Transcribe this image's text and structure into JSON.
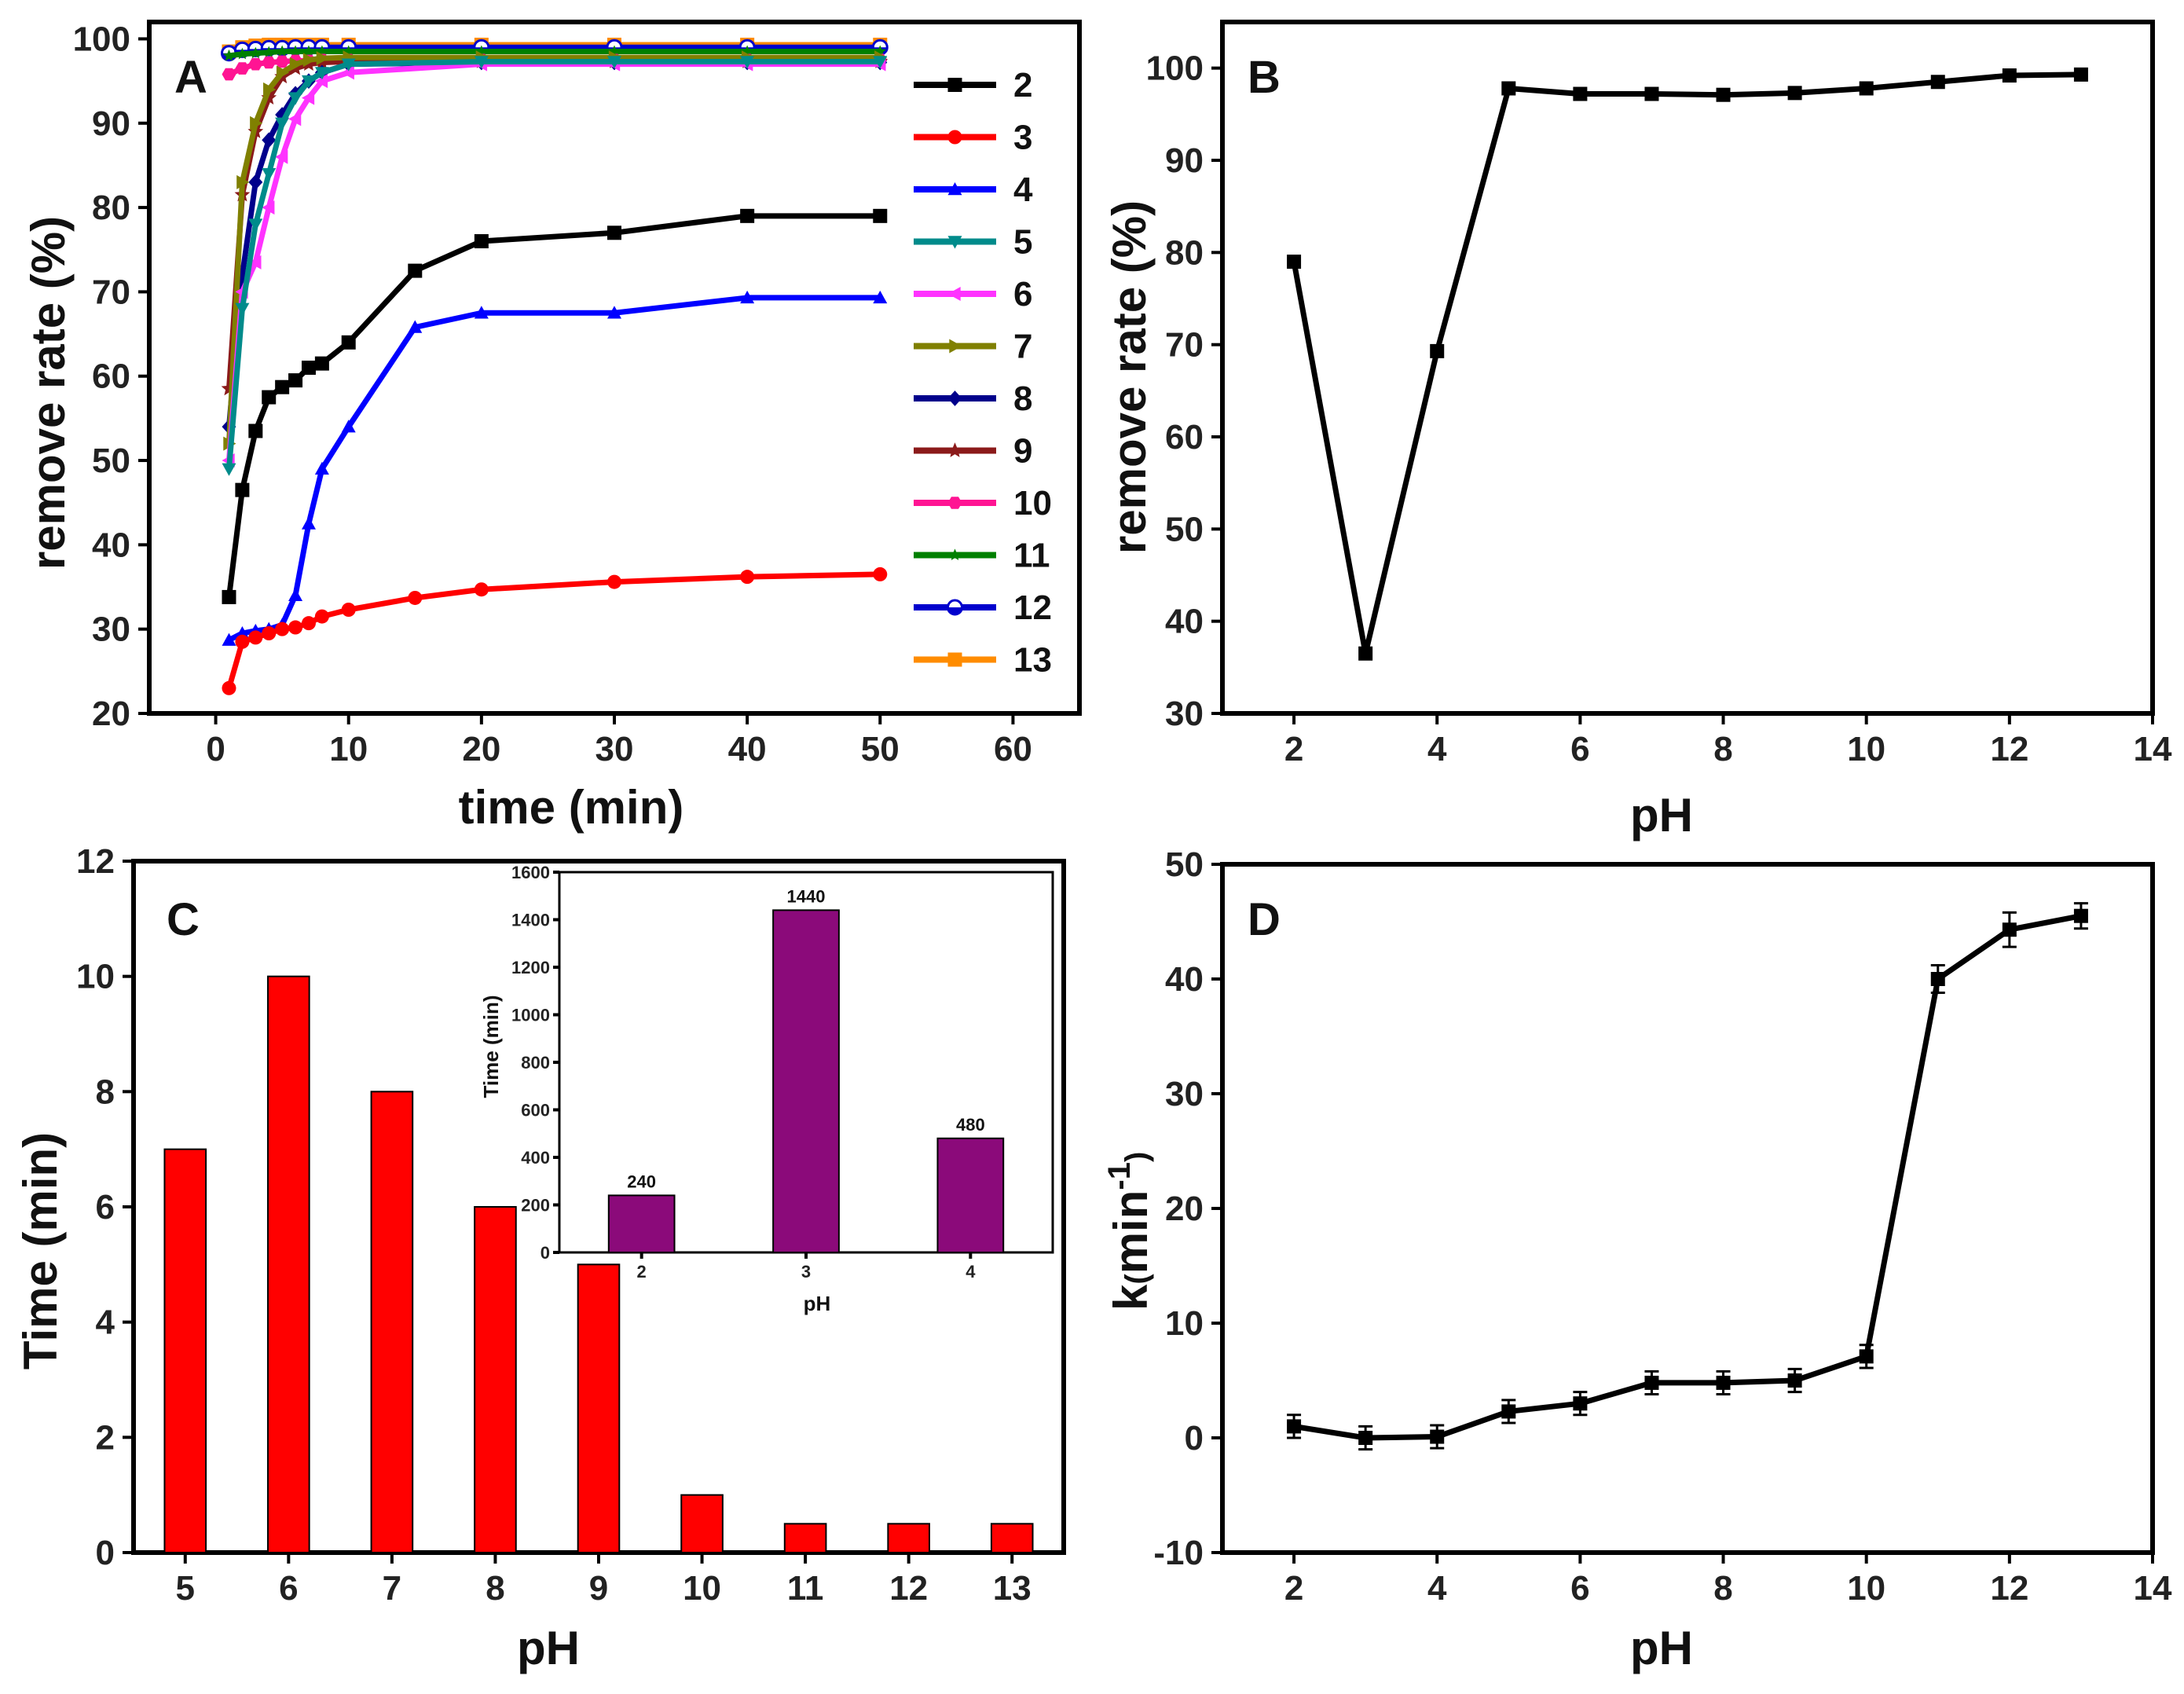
{
  "chart_data": [
    {
      "id": "A",
      "type": "line",
      "panel_label": "A",
      "xlabel": "time (min)",
      "ylabel": "remove rate (%)",
      "xlim": [
        -5,
        65
      ],
      "ylim": [
        20,
        102
      ],
      "xticks": [
        0,
        10,
        20,
        30,
        40,
        50,
        60
      ],
      "yticks": [
        20,
        30,
        40,
        50,
        60,
        70,
        80,
        90,
        100
      ],
      "series": [
        {
          "name": "2",
          "color": "#000000",
          "marker": "square",
          "x": [
            1,
            2,
            3,
            4,
            5,
            6,
            7,
            8,
            10,
            15,
            20,
            30,
            40,
            50
          ],
          "y": [
            33.8,
            46.5,
            53.5,
            57.5,
            58.7,
            59.5,
            61.0,
            61.5,
            64.0,
            72.5,
            76.0,
            77.0,
            79.0,
            79.0
          ]
        },
        {
          "name": "3",
          "color": "#ff0000",
          "marker": "circle",
          "x": [
            1,
            2,
            3,
            4,
            5,
            6,
            7,
            8,
            10,
            15,
            20,
            30,
            40,
            50
          ],
          "y": [
            23.0,
            28.5,
            29.0,
            29.5,
            30.0,
            30.2,
            30.7,
            31.5,
            32.3,
            33.7,
            34.7,
            35.6,
            36.2,
            36.5
          ]
        },
        {
          "name": "4",
          "color": "#0000ff",
          "marker": "triangle-up",
          "x": [
            1,
            2,
            3,
            4,
            5,
            6,
            7,
            8,
            10,
            15,
            20,
            30,
            40,
            50
          ],
          "y": [
            28.7,
            29.5,
            29.8,
            30.0,
            30.5,
            34.0,
            42.5,
            49.0,
            54.0,
            65.8,
            67.5,
            67.5,
            69.3,
            69.3
          ]
        },
        {
          "name": "5",
          "color": "#008b8b",
          "marker": "triangle-down",
          "x": [
            1,
            2,
            3,
            4,
            5,
            6,
            7,
            8,
            10,
            20,
            30,
            40,
            50
          ],
          "y": [
            49.0,
            68.0,
            78.0,
            84.0,
            90.0,
            93.0,
            95.0,
            96.0,
            97.0,
            97.3,
            97.3,
            97.3,
            97.3
          ]
        },
        {
          "name": "6",
          "color": "#ff33ff",
          "marker": "triangle-left",
          "x": [
            1,
            2,
            3,
            4,
            5,
            6,
            7,
            8,
            10,
            20,
            30,
            40,
            50
          ],
          "y": [
            50.0,
            70.0,
            73.5,
            80.0,
            86.0,
            90.5,
            93.0,
            95.0,
            96.0,
            97.0,
            97.0,
            97.0,
            97.0
          ]
        },
        {
          "name": "7",
          "color": "#808000",
          "marker": "triangle-right",
          "x": [
            1,
            2,
            3,
            4,
            5,
            6,
            7,
            8,
            10,
            20,
            30,
            40,
            50
          ],
          "y": [
            52.0,
            83.0,
            90.0,
            94.0,
            96.0,
            97.0,
            97.5,
            97.7,
            97.8,
            97.8,
            97.8,
            97.8,
            97.8
          ]
        },
        {
          "name": "8",
          "color": "#00008b",
          "marker": "diamond",
          "x": [
            1,
            2,
            3,
            4,
            5,
            6,
            7,
            8,
            10,
            20,
            30,
            40,
            50
          ],
          "y": [
            54.0,
            72.0,
            83.0,
            88.0,
            91.0,
            93.5,
            95.0,
            96.0,
            97.0,
            97.2,
            97.2,
            97.2,
            97.2
          ]
        },
        {
          "name": "9",
          "color": "#8b1a1a",
          "marker": "star",
          "x": [
            1,
            2,
            3,
            4,
            5,
            6,
            7,
            8,
            10,
            20,
            30,
            40,
            50
          ],
          "y": [
            58.5,
            81.5,
            89.0,
            93.0,
            95.5,
            96.5,
            97.0,
            97.2,
            97.3,
            97.3,
            97.3,
            97.3,
            97.3
          ]
        },
        {
          "name": "10",
          "color": "#ff1493",
          "marker": "hexagon",
          "x": [
            1,
            2,
            3,
            4,
            5,
            6,
            7,
            8,
            10,
            20,
            30,
            40,
            50
          ],
          "y": [
            95.8,
            96.5,
            97.0,
            97.2,
            97.3,
            97.4,
            97.4,
            97.5,
            97.5,
            97.5,
            97.5,
            97.5,
            97.5
          ]
        },
        {
          "name": "11",
          "color": "#008000",
          "marker": "star-small",
          "x": [
            1,
            2,
            3,
            4,
            5,
            6,
            7,
            8,
            10,
            20,
            30,
            40,
            50
          ],
          "y": [
            98.0,
            98.2,
            98.3,
            98.4,
            98.5,
            98.5,
            98.5,
            98.5,
            98.5,
            98.5,
            98.5,
            98.5,
            98.5
          ]
        },
        {
          "name": "12",
          "color": "#0000cd",
          "marker": "half-circle",
          "x": [
            1,
            2,
            3,
            4,
            5,
            6,
            7,
            8,
            10,
            20,
            30,
            40,
            50
          ],
          "y": [
            98.3,
            98.7,
            98.8,
            98.9,
            98.9,
            99.0,
            99.0,
            99.0,
            99.0,
            99.0,
            99.0,
            99.0,
            99.0
          ]
        },
        {
          "name": "13",
          "color": "#ff8c00",
          "marker": "square",
          "x": [
            1,
            2,
            3,
            4,
            5,
            6,
            7,
            8,
            10,
            20,
            30,
            40,
            50
          ],
          "y": [
            98.5,
            99.0,
            99.2,
            99.3,
            99.3,
            99.3,
            99.3,
            99.3,
            99.3,
            99.3,
            99.3,
            99.3,
            99.3
          ]
        }
      ]
    },
    {
      "id": "B",
      "type": "line",
      "panel_label": "B",
      "xlabel": "pH",
      "ylabel": "remove rate (%)",
      "xlim": [
        1,
        14
      ],
      "ylim": [
        30,
        105
      ],
      "xticks": [
        2,
        4,
        6,
        8,
        10,
        12,
        14
      ],
      "yticks": [
        30,
        40,
        50,
        60,
        70,
        80,
        90,
        100
      ],
      "series": [
        {
          "name": "remove rate",
          "color": "#000000",
          "marker": "square",
          "x": [
            2,
            3,
            4,
            5,
            6,
            7,
            8,
            9,
            10,
            11,
            12,
            13
          ],
          "y": [
            79.0,
            36.5,
            69.3,
            97.8,
            97.2,
            97.2,
            97.1,
            97.3,
            97.8,
            98.5,
            99.2,
            99.3
          ]
        }
      ]
    },
    {
      "id": "C",
      "type": "bar",
      "panel_label": "C",
      "xlabel": "pH",
      "ylabel": "Time (min)",
      "ylim": [
        0,
        12
      ],
      "yticks": [
        0,
        2,
        4,
        6,
        8,
        10,
        12
      ],
      "categories": [
        "5",
        "6",
        "7",
        "8",
        "9",
        "10",
        "11",
        "12",
        "13"
      ],
      "values": [
        7,
        10,
        8,
        6,
        5,
        1,
        0.5,
        0.5,
        0.5
      ],
      "color": "#ff0000",
      "inset": {
        "type": "bar",
        "xlabel": "pH",
        "ylabel": "Time (min)",
        "ylim": [
          0,
          1600
        ],
        "yticks": [
          0,
          200,
          400,
          600,
          800,
          1000,
          1200,
          1400,
          1600
        ],
        "categories": [
          "2",
          "3",
          "4"
        ],
        "values": [
          240,
          1440,
          480
        ],
        "data_labels": [
          "240",
          "1440",
          "480"
        ],
        "color": "#8b0a7a"
      }
    },
    {
      "id": "D",
      "type": "line",
      "panel_label": "D",
      "xlabel": "pH",
      "ylabel": "k(min-1)",
      "ylabel_parts": {
        "base": "k",
        "open": "(",
        "unit": "min",
        "sup": "-1",
        "close": ")"
      },
      "xlim": [
        1,
        14
      ],
      "ylim": [
        -10,
        50
      ],
      "xticks": [
        2,
        4,
        6,
        8,
        10,
        12,
        14
      ],
      "yticks": [
        -10,
        0,
        10,
        20,
        30,
        40,
        50
      ],
      "series": [
        {
          "name": "k",
          "color": "#000000",
          "marker": "square",
          "x": [
            2,
            3,
            4,
            5,
            6,
            7,
            8,
            9,
            10,
            11,
            12,
            13
          ],
          "y": [
            1.0,
            0.0,
            0.1,
            2.3,
            3.0,
            4.8,
            4.8,
            5.0,
            7.1,
            40.0,
            44.3,
            45.5
          ],
          "err": [
            1.0,
            1.0,
            1.0,
            1.0,
            1.0,
            1.0,
            1.0,
            1.0,
            1.0,
            1.2,
            1.5,
            1.1
          ]
        }
      ]
    }
  ]
}
